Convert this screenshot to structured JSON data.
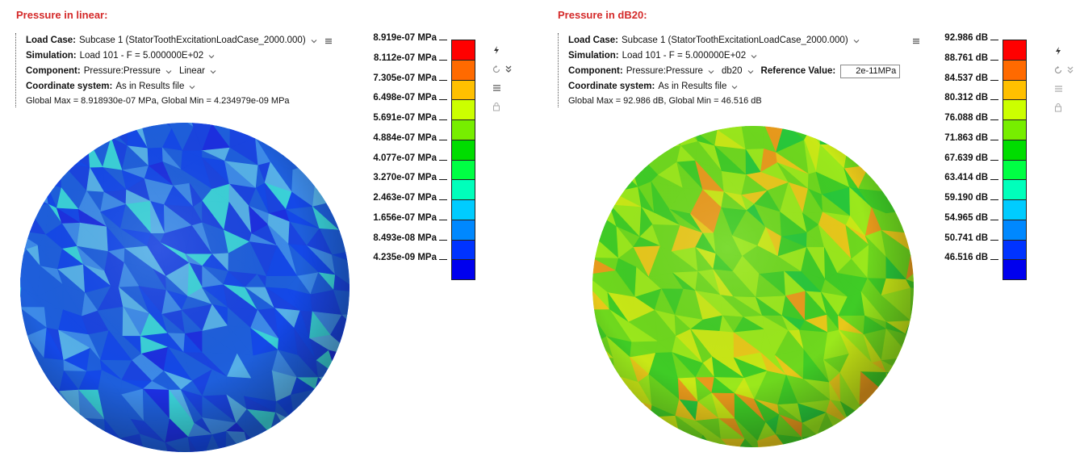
{
  "panels": [
    {
      "title": "Pressure in linear:",
      "load_case": {
        "label": "Load Case:",
        "value": "Subcase 1 (StatorToothExcitationLoadCase_2000.000)"
      },
      "simulation": {
        "label": "Simulation:",
        "value": "Load 101 - F = 5.000000E+02"
      },
      "component": {
        "label": "Component:",
        "value": "Pressure:Pressure",
        "scale": "Linear"
      },
      "coordinate_system": {
        "label": "Coordinate system:",
        "value": "As in Results file"
      },
      "global_minmax": "Global Max = 8.918930e-07 MPa, Global Min = 4.234979e-09 MPa",
      "legend": {
        "labels": [
          "8.919e-07 MPa",
          "8.112e-07 MPa",
          "7.305e-07 MPa",
          "6.498e-07 MPa",
          "5.691e-07 MPa",
          "4.884e-07 MPa",
          "4.077e-07 MPa",
          "3.270e-07 MPa",
          "2.463e-07 MPa",
          "1.656e-07 MPa",
          "8.493e-08 MPa",
          "4.235e-09 MPa"
        ],
        "colors": [
          "#ff0000",
          "#ff6a00",
          "#ffc000",
          "#ccff00",
          "#77ee00",
          "#00dd00",
          "#00ff44",
          "#00ffbb",
          "#00ccff",
          "#0088ff",
          "#0033ff",
          "#0000ee"
        ]
      },
      "sphere_palette": [
        "#1e5fdc",
        "#1a44e0",
        "#1448e8",
        "#3d8ae8",
        "#56b0e8",
        "#3ad1d8",
        "#1c2fe0"
      ]
    },
    {
      "title": "Pressure in dB20:",
      "load_case": {
        "label": "Load Case:",
        "value": "Subcase 1 (StatorToothExcitationLoadCase_2000.000)"
      },
      "simulation": {
        "label": "Simulation:",
        "value": "Load 101 - F = 5.000000E+02"
      },
      "component": {
        "label": "Component:",
        "value": "Pressure:Pressure",
        "scale": "db20"
      },
      "reference": {
        "label": "Reference Value:",
        "value": "2e-11MPa"
      },
      "coordinate_system": {
        "label": "Coordinate system:",
        "value": "As in Results file"
      },
      "global_minmax": "Global Max = 92.986 dB, Global Min = 46.516 dB",
      "legend": {
        "labels": [
          "92.986 dB",
          "88.761 dB",
          "84.537 dB",
          "80.312 dB",
          "76.088 dB",
          "71.863 dB",
          "67.639 dB",
          "63.414 dB",
          "59.190 dB",
          "54.965 dB",
          "50.741 dB",
          "46.516 dB"
        ],
        "colors": [
          "#ff0000",
          "#ff6a00",
          "#ffc000",
          "#ccff00",
          "#77ee00",
          "#00dd00",
          "#00ff44",
          "#00ffbb",
          "#00ccff",
          "#0088ff",
          "#0033ff",
          "#0000ee"
        ]
      },
      "sphere_palette": [
        "#6ed81e",
        "#9ae81c",
        "#3fcc26",
        "#c9e816",
        "#e8c81a",
        "#e89a1c",
        "#28c83a"
      ]
    }
  ],
  "icons": [
    "lightning-icon",
    "reset-icon",
    "expand-chevron-icon",
    "menu-icon",
    "lock-icon"
  ]
}
